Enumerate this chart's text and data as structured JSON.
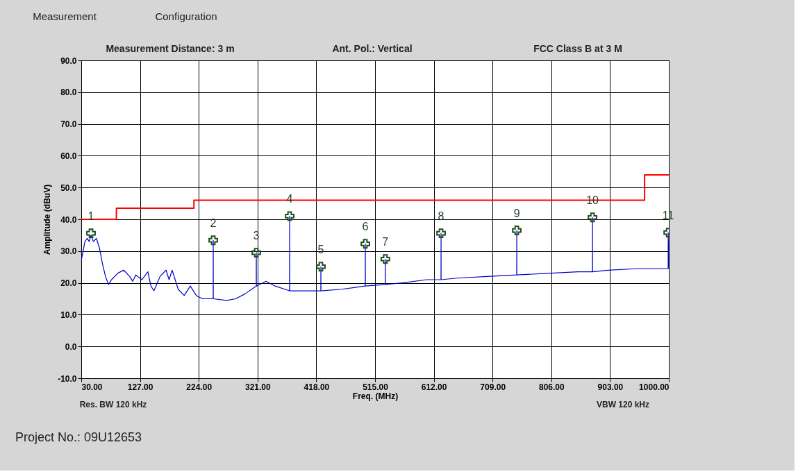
{
  "chart_data": {
    "type": "line",
    "xlabel": "Freq. (MHz)",
    "ylabel": "Amplitude (dBuV)",
    "xlim": [
      30,
      1000
    ],
    "xticks": [
      {
        "value": 30,
        "label": "30.00"
      },
      {
        "value": 127,
        "label": "127.00"
      },
      {
        "value": 224,
        "label": "224.00"
      },
      {
        "value": 321,
        "label": "321.00"
      },
      {
        "value": 418,
        "label": "418.00"
      },
      {
        "value": 515,
        "label": "515.00"
      },
      {
        "value": 612,
        "label": "612.00"
      },
      {
        "value": 709,
        "label": "709.00"
      },
      {
        "value": 806,
        "label": "806.00"
      },
      {
        "value": 903,
        "label": "903.00"
      },
      {
        "value": 1000,
        "label": "1000.00"
      }
    ],
    "ylim": [
      -10,
      90
    ],
    "yticks": [
      {
        "value": -10,
        "label": "-10.0"
      },
      {
        "value": 0,
        "label": "0.0"
      },
      {
        "value": 10,
        "label": "10.0"
      },
      {
        "value": 20,
        "label": "20.0"
      },
      {
        "value": 30,
        "label": "30.0"
      },
      {
        "value": 40,
        "label": "40.0"
      },
      {
        "value": 50,
        "label": "50.0"
      },
      {
        "value": 60,
        "label": "60.0"
      },
      {
        "value": 70,
        "label": "70.0"
      },
      {
        "value": 80,
        "label": "80.0"
      },
      {
        "value": 90,
        "label": "90.0"
      }
    ],
    "grid": true,
    "series": [
      {
        "color": "#0000cc",
        "x": [
          30,
          33,
          36,
          40,
          43,
          46,
          50,
          55,
          60,
          65,
          70,
          75,
          80,
          90,
          100,
          110,
          115,
          120,
          130,
          140,
          145,
          150,
          160,
          170,
          175,
          180,
          190,
          200,
          210,
          220,
          230,
          247.8,
          247.9,
          248,
          270,
          285,
          300,
          318.9,
          319,
          319.1,
          335,
          350,
          373.9,
          374,
          374.1,
          400,
          425.5,
          425.6,
          425.7,
          460,
          498.9,
          499,
          499.1,
          531.9,
          532,
          532.1,
          560,
          600,
          623.9,
          624,
          624.1,
          650,
          700,
          748.9,
          749,
          749.1,
          800,
          850,
          873.9,
          874,
          874.1,
          900,
          950,
          998.9,
          999,
          1000
        ],
        "values": [
          27,
          30,
          33,
          34,
          33,
          35,
          33,
          34,
          31,
          26,
          22,
          19.5,
          21,
          23,
          24,
          22,
          20.5,
          22.5,
          21,
          23.5,
          19,
          17.5,
          22,
          24,
          21,
          24,
          18,
          16,
          19,
          16,
          15,
          15,
          33.4,
          15,
          14.5,
          15,
          16.5,
          19,
          29.5,
          19,
          20.5,
          19,
          17.5,
          41,
          17.5,
          17.5,
          17.5,
          25.1,
          17.5,
          18,
          19,
          32.3,
          19,
          19.5,
          27.5,
          19.5,
          20,
          21,
          21,
          35.6,
          21,
          21.5,
          22,
          22.5,
          36.5,
          22.5,
          23,
          23.5,
          23.5,
          40.6,
          23.5,
          24,
          24.5,
          24.5,
          35.8,
          24.5
        ]
      },
      {
        "type": "step",
        "color": "#ff0000",
        "x": [
          30,
          88,
          216,
          960,
          1000
        ],
        "values": [
          40,
          43.5,
          46,
          54,
          54
        ]
      },
      {
        "type": "scatter",
        "color": "#1f4d1f",
        "marker": "cross",
        "x": [
          46.1,
          247.9,
          319,
          374,
          425.6,
          499,
          532,
          624,
          749,
          874,
          999
        ],
        "values": [
          35.6,
          33.4,
          29.5,
          41,
          25.1,
          32.3,
          27.5,
          35.6,
          36.5,
          40.6,
          35.8
        ]
      }
    ],
    "annotations": [
      "Measurement",
      "Configuration",
      "Measurement Distance: 3 m",
      "Ant. Pol.: Vertical",
      "FCC Class B at 3 M",
      "Res. BW 120 kHz",
      "VBW 120 kHz",
      "Project No.: 09U12653",
      {
        "text": "1",
        "x": 46.1,
        "y": 35.6
      },
      {
        "text": "2",
        "x": 247.9,
        "y": 33.4
      },
      {
        "text": "3",
        "x": 319,
        "y": 29.5
      },
      {
        "text": "4",
        "x": 374,
        "y": 41
      },
      {
        "text": "5",
        "x": 425.6,
        "y": 25.1
      },
      {
        "text": "6",
        "x": 499,
        "y": 32.3
      },
      {
        "text": "7",
        "x": 532,
        "y": 27.5
      },
      {
        "text": "8",
        "x": 624,
        "y": 35.6
      },
      {
        "text": "9",
        "x": 749,
        "y": 36.5
      },
      {
        "text": "10",
        "x": 874,
        "y": 40.6
      },
      {
        "text": "11",
        "x": 999,
        "y": 35.8
      }
    ]
  }
}
